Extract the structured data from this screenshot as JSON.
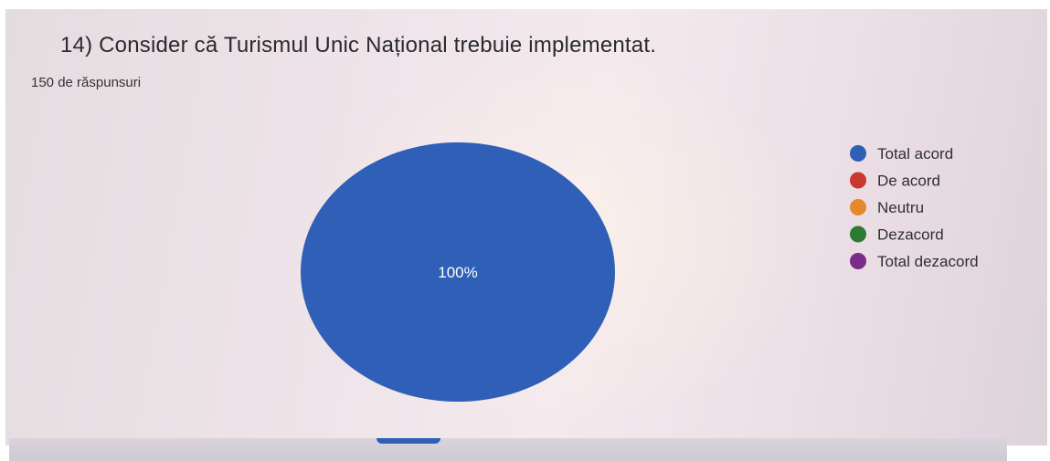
{
  "question": "14) Consider că Turismul Unic Național trebuie implementat.",
  "responses_count": "150 de răspunsuri",
  "chart_data": {
    "type": "pie",
    "title": "14) Consider că Turismul Unic Național trebuie implementat.",
    "total_responses": 150,
    "legend_position": "right",
    "slices": [
      {
        "label": "Total acord",
        "value": 100,
        "color": "#2f5fb6"
      },
      {
        "label": "De acord",
        "value": 0,
        "color": "#c8382c"
      },
      {
        "label": "Neutru",
        "value": 0,
        "color": "#e6892a"
      },
      {
        "label": "Dezacord",
        "value": 0,
        "color": "#2e7a35"
      },
      {
        "label": "Total dezacord",
        "value": 0,
        "color": "#7a2c8a"
      }
    ],
    "data_labels": [
      "100%"
    ]
  }
}
